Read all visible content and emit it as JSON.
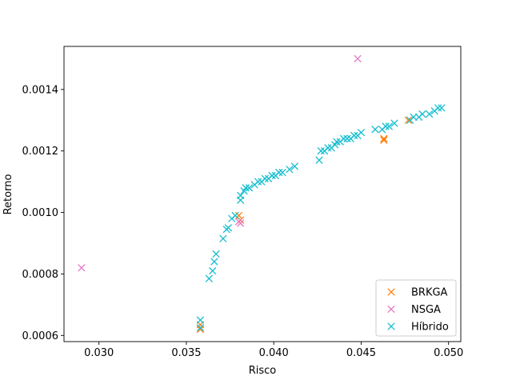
{
  "chart_data": {
    "type": "scatter",
    "title": "",
    "xlabel": "Risco",
    "ylabel": "Retorno",
    "xlim": [
      0.028,
      0.0507
    ],
    "ylim": [
      0.00058,
      0.00154
    ],
    "xticks": [
      0.03,
      0.035,
      0.04,
      0.045,
      0.05
    ],
    "xtick_labels": [
      "0.030",
      "0.035",
      "0.040",
      "0.045",
      "0.050"
    ],
    "yticks": [
      0.0006,
      0.0008,
      0.001,
      0.0012,
      0.0014
    ],
    "ytick_labels": [
      "0.0006",
      "0.0008",
      "0.0010",
      "0.0012",
      "0.0014"
    ],
    "grid": false,
    "legend_position": "lower-right",
    "marker": "x",
    "series": [
      {
        "name": "BRKGA",
        "color": "#ff7f0e",
        "points": [
          [
            0.0358,
            0.00062
          ],
          [
            0.0358,
            0.000635
          ],
          [
            0.038,
            0.00099
          ],
          [
            0.0381,
            0.000975
          ],
          [
            0.0463,
            0.00124
          ],
          [
            0.0463,
            0.001235
          ],
          [
            0.0477,
            0.0013
          ]
        ]
      },
      {
        "name": "NSGA",
        "color": "#e377c2",
        "points": [
          [
            0.029,
            0.00082
          ],
          [
            0.0448,
            0.0015
          ],
          [
            0.038,
            0.00097
          ],
          [
            0.0381,
            0.000965
          ]
        ]
      },
      {
        "name": "Híbrido",
        "color": "#17becf",
        "points": [
          [
            0.0358,
            0.00065
          ],
          [
            0.0358,
            0.000625
          ],
          [
            0.0363,
            0.000785
          ],
          [
            0.0365,
            0.00081
          ],
          [
            0.0366,
            0.00084
          ],
          [
            0.0367,
            0.000865
          ],
          [
            0.0371,
            0.000915
          ],
          [
            0.0373,
            0.000945
          ],
          [
            0.0374,
            0.00095
          ],
          [
            0.0376,
            0.00098
          ],
          [
            0.0378,
            0.00099
          ],
          [
            0.0381,
            0.00104
          ],
          [
            0.0381,
            0.001055
          ],
          [
            0.0383,
            0.00107
          ],
          [
            0.0384,
            0.00108
          ],
          [
            0.0386,
            0.00108
          ],
          [
            0.0389,
            0.00109
          ],
          [
            0.0391,
            0.0011
          ],
          [
            0.0393,
            0.0011
          ],
          [
            0.0395,
            0.00111
          ],
          [
            0.0397,
            0.00111
          ],
          [
            0.0399,
            0.00112
          ],
          [
            0.0401,
            0.00112
          ],
          [
            0.0403,
            0.00113
          ],
          [
            0.0405,
            0.00113
          ],
          [
            0.0409,
            0.00114
          ],
          [
            0.0412,
            0.00115
          ],
          [
            0.0426,
            0.00117
          ],
          [
            0.0427,
            0.0012
          ],
          [
            0.0429,
            0.0012
          ],
          [
            0.0431,
            0.00121
          ],
          [
            0.0433,
            0.00121
          ],
          [
            0.0435,
            0.00122
          ],
          [
            0.0436,
            0.00123
          ],
          [
            0.0438,
            0.00123
          ],
          [
            0.044,
            0.00124
          ],
          [
            0.0442,
            0.00124
          ],
          [
            0.0444,
            0.00124
          ],
          [
            0.0446,
            0.00125
          ],
          [
            0.0448,
            0.00125
          ],
          [
            0.045,
            0.00126
          ],
          [
            0.0458,
            0.00127
          ],
          [
            0.0462,
            0.00127
          ],
          [
            0.0464,
            0.00128
          ],
          [
            0.0466,
            0.00128
          ],
          [
            0.0469,
            0.00129
          ],
          [
            0.0478,
            0.0013
          ],
          [
            0.048,
            0.00131
          ],
          [
            0.0483,
            0.00131
          ],
          [
            0.0485,
            0.00132
          ],
          [
            0.0489,
            0.00132
          ],
          [
            0.0492,
            0.00133
          ],
          [
            0.0494,
            0.00134
          ],
          [
            0.0496,
            0.00134
          ]
        ]
      }
    ]
  }
}
